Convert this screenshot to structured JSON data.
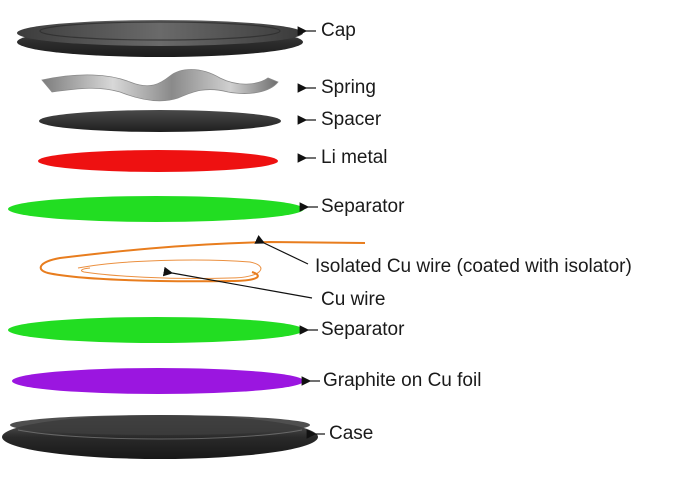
{
  "labels": {
    "cap": "Cap",
    "spring": "Spring",
    "spacer": "Spacer",
    "li_metal": "Li metal",
    "separator_top": "Separator",
    "isolated_wire": "Isolated Cu wire (coated with isolator)",
    "cu_wire": "Cu wire",
    "separator_bottom": "Separator",
    "graphite": "Graphite on Cu foil",
    "case": "Case"
  },
  "colors": {
    "cap": "#3a3a3a",
    "spring": "#9a9a9a",
    "spacer": "#2e2e2e",
    "li_metal": "#ee1111",
    "separator": "#22dd22",
    "wire": "#e87d1e",
    "graphite": "#9b16e0",
    "case": "#333333"
  }
}
